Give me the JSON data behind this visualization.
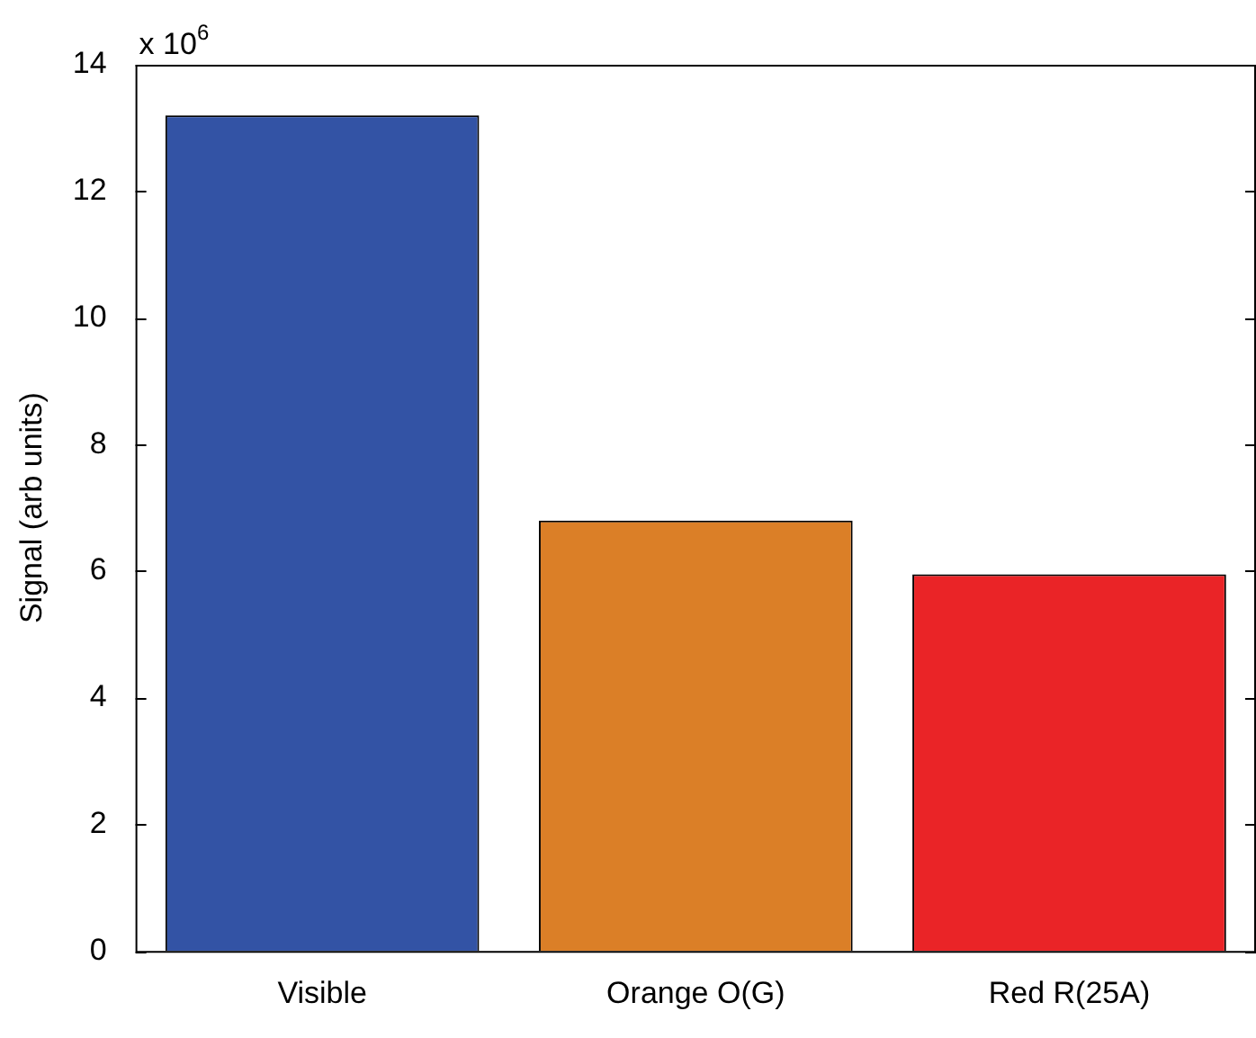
{
  "chart_data": {
    "type": "bar",
    "ylabel": "Signal (arb units)",
    "categories": [
      "Visible",
      "Orange O(G)",
      "Red R(25A)"
    ],
    "values": [
      13.2,
      6.8,
      5.95
    ],
    "colors": [
      "#3353a5",
      "#db7f27",
      "#ea2427"
    ],
    "ylim": [
      0,
      14
    ],
    "yticks": [
      0,
      2,
      4,
      6,
      8,
      10,
      12,
      14
    ],
    "annotations": [
      "x 10$^{6}$"
    ]
  }
}
